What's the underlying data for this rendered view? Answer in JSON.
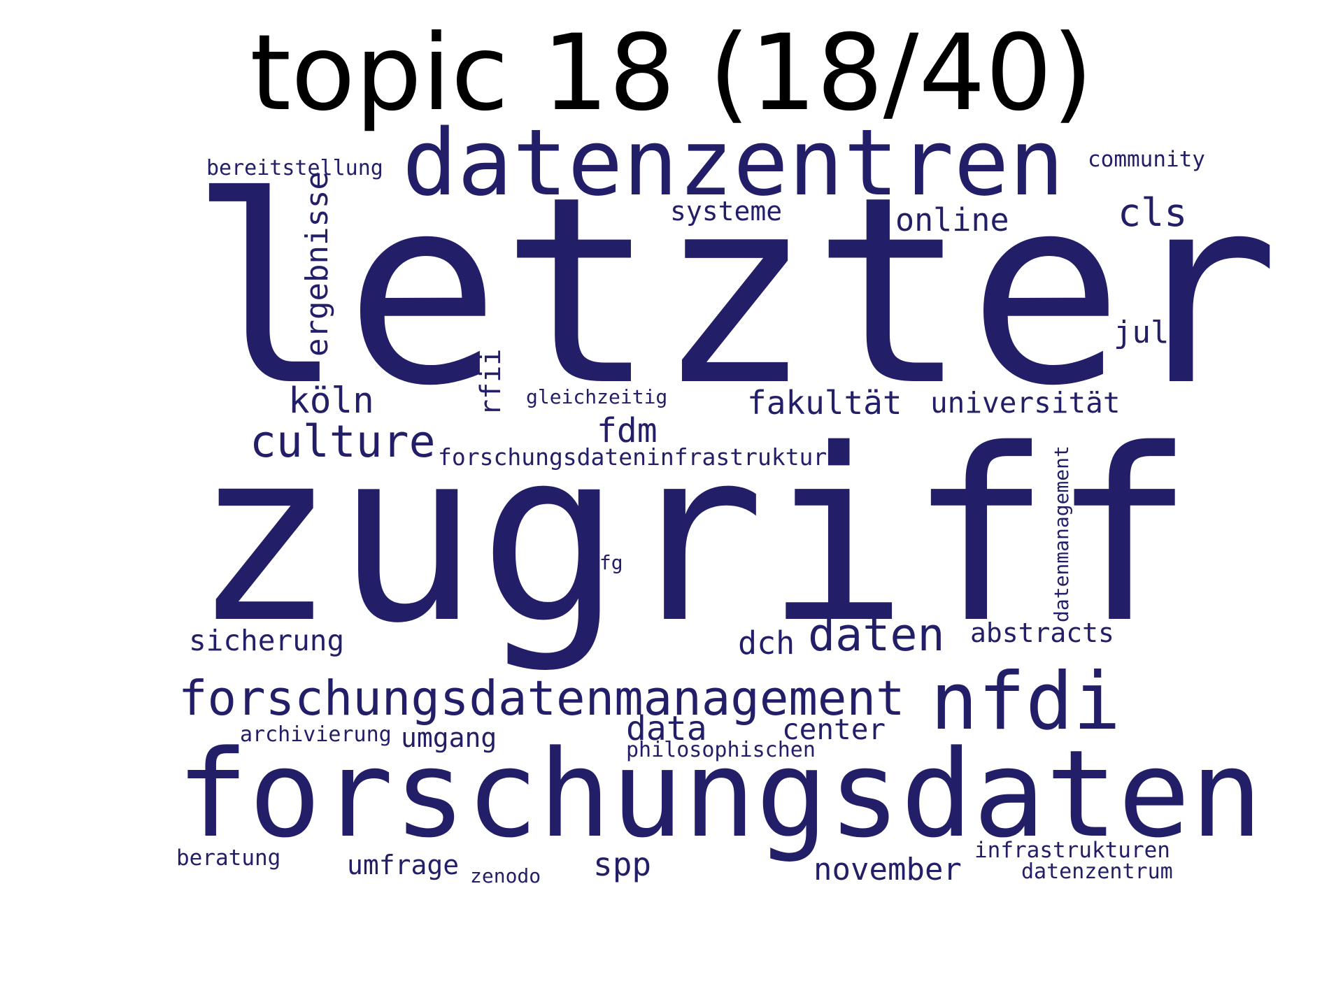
{
  "title": "topic 18 (18/40)",
  "chart_data": {
    "type": "wordcloud",
    "title": "topic 18 (18/40)",
    "color": "#231e68",
    "background": "#ffffff",
    "words": [
      {
        "text": "letzter",
        "weight": 100,
        "orientation": "horizontal"
      },
      {
        "text": "zugriff",
        "weight": 100,
        "orientation": "horizontal"
      },
      {
        "text": "forschungsdaten",
        "weight": 62,
        "orientation": "horizontal"
      },
      {
        "text": "datenzentren",
        "weight": 47,
        "orientation": "horizontal"
      },
      {
        "text": "nfdi",
        "weight": 41,
        "orientation": "horizontal"
      },
      {
        "text": "forschungsdatenmanagement",
        "weight": 29,
        "orientation": "horizontal"
      },
      {
        "text": "daten",
        "weight": 26,
        "orientation": "horizontal"
      },
      {
        "text": "culture",
        "weight": 26,
        "orientation": "horizontal"
      },
      {
        "text": "cls",
        "weight": 22,
        "orientation": "horizontal"
      },
      {
        "text": "köln",
        "weight": 20,
        "orientation": "horizontal"
      },
      {
        "text": "fdm",
        "weight": 19,
        "orientation": "horizontal"
      },
      {
        "text": "data",
        "weight": 19,
        "orientation": "horizontal"
      },
      {
        "text": "ergebnisse",
        "weight": 18,
        "orientation": "vertical"
      },
      {
        "text": "fakultät",
        "weight": 18,
        "orientation": "horizontal"
      },
      {
        "text": "spp",
        "weight": 18,
        "orientation": "horizontal"
      },
      {
        "text": "online",
        "weight": 18,
        "orientation": "horizontal"
      },
      {
        "text": "dch",
        "weight": 18,
        "orientation": "horizontal"
      },
      {
        "text": "november",
        "weight": 17,
        "orientation": "horizontal"
      },
      {
        "text": "juli",
        "weight": 17,
        "orientation": "horizontal"
      },
      {
        "text": "sicherung",
        "weight": 16,
        "orientation": "horizontal"
      },
      {
        "text": "center",
        "weight": 16,
        "orientation": "horizontal"
      },
      {
        "text": "universität",
        "weight": 16,
        "orientation": "horizontal"
      },
      {
        "text": "rfii",
        "weight": 16,
        "orientation": "vertical"
      },
      {
        "text": "umfrage",
        "weight": 15,
        "orientation": "horizontal"
      },
      {
        "text": "systeme",
        "weight": 15,
        "orientation": "horizontal"
      },
      {
        "text": "abstracts",
        "weight": 15,
        "orientation": "horizontal"
      },
      {
        "text": "umgang",
        "weight": 15,
        "orientation": "horizontal"
      },
      {
        "text": "forschungsdateninfrastruktur",
        "weight": 13,
        "orientation": "horizontal"
      },
      {
        "text": "community",
        "weight": 12,
        "orientation": "horizontal"
      },
      {
        "text": "beratung",
        "weight": 12,
        "orientation": "horizontal"
      },
      {
        "text": "infrastrukturen",
        "weight": 12,
        "orientation": "horizontal"
      },
      {
        "text": "bereitstellung",
        "weight": 12,
        "orientation": "horizontal"
      },
      {
        "text": "archivierung",
        "weight": 12,
        "orientation": "horizontal"
      },
      {
        "text": "datenzentrum",
        "weight": 12,
        "orientation": "horizontal"
      },
      {
        "text": "philosophischen",
        "weight": 12,
        "orientation": "horizontal"
      },
      {
        "text": "datenmanagement",
        "weight": 11,
        "orientation": "vertical"
      },
      {
        "text": "gleichzeitig",
        "weight": 11,
        "orientation": "horizontal"
      },
      {
        "text": "dfg",
        "weight": 11,
        "orientation": "horizontal"
      },
      {
        "text": "zenodo",
        "weight": 11,
        "orientation": "horizontal"
      }
    ]
  }
}
